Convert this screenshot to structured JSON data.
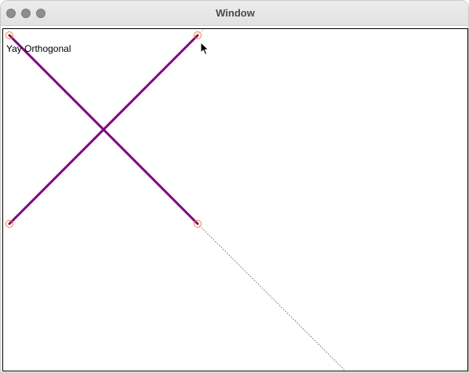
{
  "window": {
    "title": "Window"
  },
  "canvas": {
    "status_text": "Yay Orthogonal",
    "colors": {
      "line": "#800080",
      "handle": "#f08030",
      "guide": "#666666",
      "frame": "#000000"
    }
  },
  "icons": {
    "close": "traffic-light-close",
    "minimize": "traffic-light-minimize",
    "zoom": "traffic-light-zoom",
    "cursor": "arrow-pointer"
  }
}
